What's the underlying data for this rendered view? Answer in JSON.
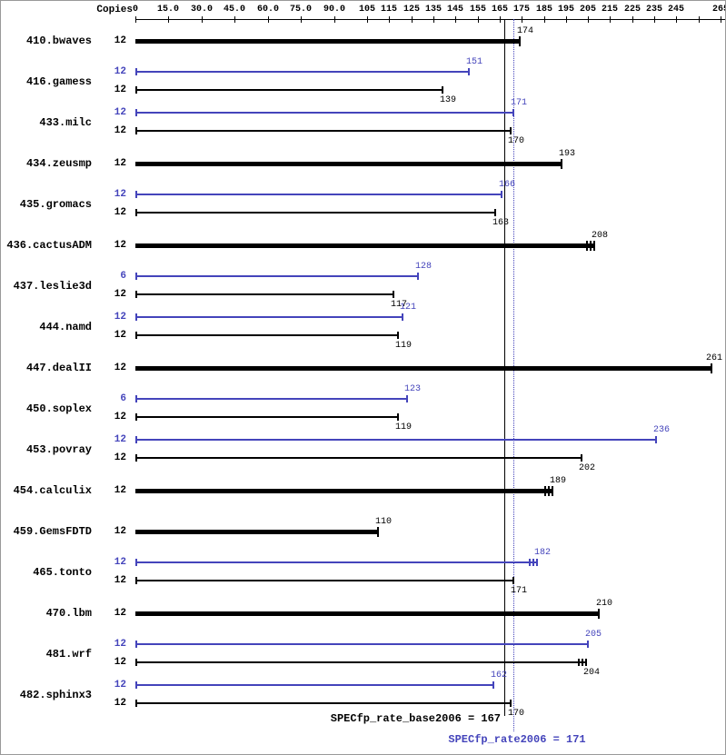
{
  "header": {
    "copies_label": "Copies"
  },
  "colors": {
    "peak_blue": "#4444bb",
    "base_black": "#000000"
  },
  "chart_data": {
    "type": "bar",
    "orientation": "horizontal",
    "x_axis": {
      "xlim": [
        0,
        268
      ],
      "ticks": [
        {
          "value": 0,
          "label": "0"
        },
        {
          "value": 15,
          "label": "15.0"
        },
        {
          "value": 30,
          "label": "30.0"
        },
        {
          "value": 45,
          "label": "45.0"
        },
        {
          "value": 60,
          "label": "60.0"
        },
        {
          "value": 75,
          "label": "75.0"
        },
        {
          "value": 90,
          "label": "90.0"
        },
        {
          "value": 105,
          "label": "105"
        },
        {
          "value": 115,
          "label": "115"
        },
        {
          "value": 125,
          "label": "125"
        },
        {
          "value": 135,
          "label": "135"
        },
        {
          "value": 145,
          "label": "145"
        },
        {
          "value": 155,
          "label": "155"
        },
        {
          "value": 165,
          "label": "165"
        },
        {
          "value": 175,
          "label": "175"
        },
        {
          "value": 185,
          "label": "185"
        },
        {
          "value": 195,
          "label": "195"
        },
        {
          "value": 205,
          "label": "205"
        },
        {
          "value": 215,
          "label": "215"
        },
        {
          "value": 225,
          "label": "225"
        },
        {
          "value": 235,
          "label": "235"
        },
        {
          "value": 245,
          "label": "245"
        },
        {
          "value": 255,
          "label": ""
        },
        {
          "value": 265,
          "label": "265"
        }
      ]
    },
    "reference_lines": [
      {
        "name": "base",
        "value": 167,
        "style": "solid",
        "color": "#000000",
        "label": "SPECfp_rate_base2006 = 167"
      },
      {
        "name": "peak",
        "value": 171,
        "style": "dotted",
        "color": "#4444bb",
        "label": "SPECfp_rate2006 = 171"
      }
    ],
    "benchmarks": [
      {
        "name": "410.bwaves",
        "bars": [
          {
            "kind": "base",
            "copies": "12",
            "value": 174,
            "single": true
          }
        ]
      },
      {
        "name": "416.gamess",
        "bars": [
          {
            "kind": "peak",
            "copies": "12",
            "value": 151
          },
          {
            "kind": "base",
            "copies": "12",
            "value": 139
          }
        ]
      },
      {
        "name": "433.milc",
        "bars": [
          {
            "kind": "peak",
            "copies": "12",
            "value": 171
          },
          {
            "kind": "base",
            "copies": "12",
            "value": 170
          }
        ]
      },
      {
        "name": "434.zeusmp",
        "bars": [
          {
            "kind": "base",
            "copies": "12",
            "value": 193,
            "single": true
          }
        ]
      },
      {
        "name": "435.gromacs",
        "bars": [
          {
            "kind": "peak",
            "copies": "12",
            "value": 166
          },
          {
            "kind": "base",
            "copies": "12",
            "value": 163
          }
        ]
      },
      {
        "name": "436.cactusADM",
        "bars": [
          {
            "kind": "base",
            "copies": "12",
            "value": 208,
            "single": true,
            "runmarks": true
          }
        ]
      },
      {
        "name": "437.leslie3d",
        "bars": [
          {
            "kind": "peak",
            "copies": "6",
            "value": 128
          },
          {
            "kind": "base",
            "copies": "12",
            "value": 117
          }
        ]
      },
      {
        "name": "444.namd",
        "bars": [
          {
            "kind": "peak",
            "copies": "12",
            "value": 121
          },
          {
            "kind": "base",
            "copies": "12",
            "value": 119
          }
        ]
      },
      {
        "name": "447.dealII",
        "bars": [
          {
            "kind": "base",
            "copies": "12",
            "value": 261,
            "single": true
          }
        ]
      },
      {
        "name": "450.soplex",
        "bars": [
          {
            "kind": "peak",
            "copies": "6",
            "value": 123
          },
          {
            "kind": "base",
            "copies": "12",
            "value": 119
          }
        ]
      },
      {
        "name": "453.povray",
        "bars": [
          {
            "kind": "peak",
            "copies": "12",
            "value": 236
          },
          {
            "kind": "base",
            "copies": "12",
            "value": 202
          }
        ]
      },
      {
        "name": "454.calculix",
        "bars": [
          {
            "kind": "base",
            "copies": "12",
            "value": 189,
            "single": true,
            "runmarks": true
          }
        ]
      },
      {
        "name": "459.GemsFDTD",
        "bars": [
          {
            "kind": "base",
            "copies": "12",
            "value": 110,
            "single": true
          }
        ]
      },
      {
        "name": "465.tonto",
        "bars": [
          {
            "kind": "peak",
            "copies": "12",
            "value": 182,
            "runmarks": true
          },
          {
            "kind": "base",
            "copies": "12",
            "value": 171
          }
        ]
      },
      {
        "name": "470.lbm",
        "bars": [
          {
            "kind": "base",
            "copies": "12",
            "value": 210,
            "single": true
          }
        ]
      },
      {
        "name": "481.wrf",
        "bars": [
          {
            "kind": "peak",
            "copies": "12",
            "value": 205
          },
          {
            "kind": "base",
            "copies": "12",
            "value": 204,
            "runmarks": true
          }
        ]
      },
      {
        "name": "482.sphinx3",
        "bars": [
          {
            "kind": "peak",
            "copies": "12",
            "value": 162
          },
          {
            "kind": "base",
            "copies": "12",
            "value": 170
          }
        ]
      }
    ]
  }
}
